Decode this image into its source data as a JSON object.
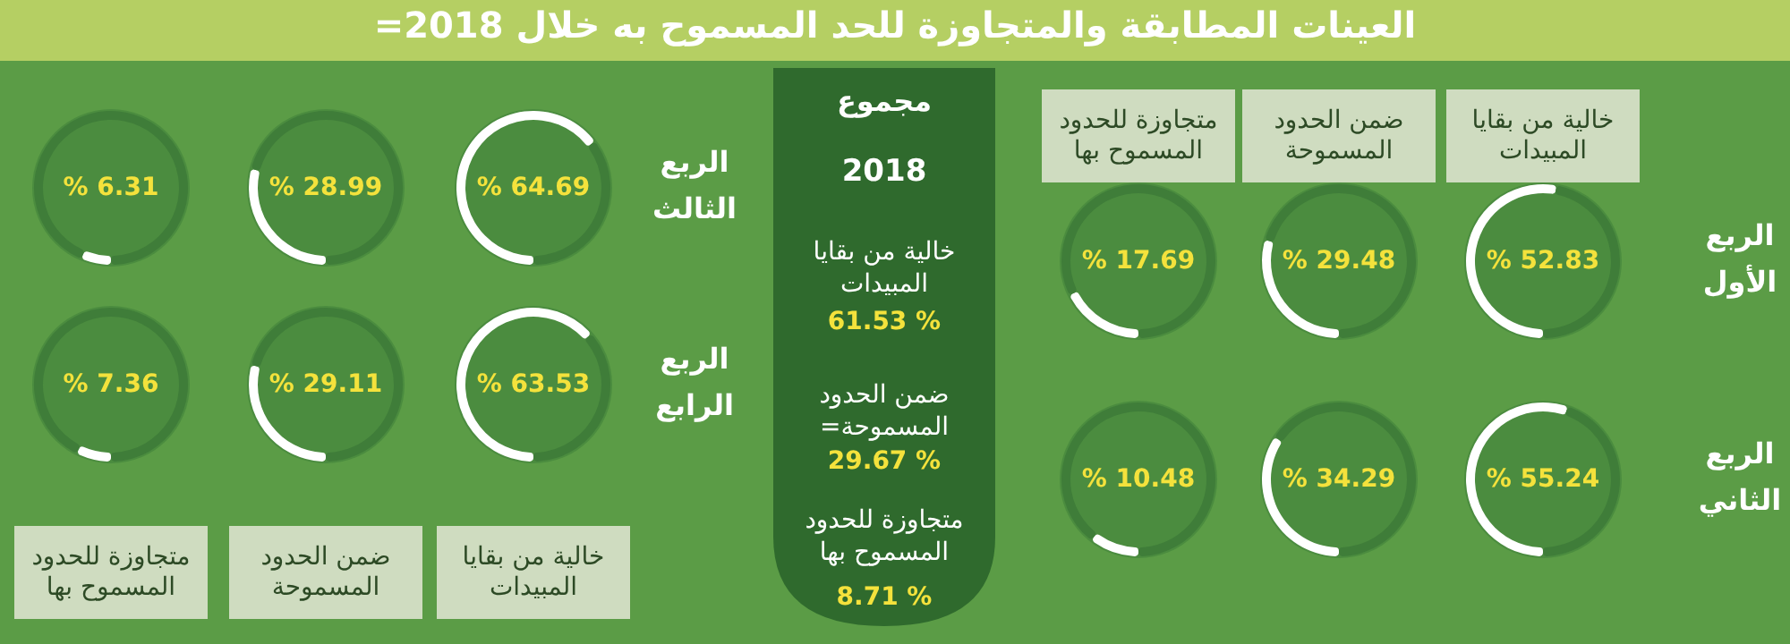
{
  "chart_data": [
    {
      "type": "other",
      "title": "العينات المطابقة والمتجاوزة للحد المسموح به خلال 2018=",
      "annotations": [
        "خالية من بقايا المبيدات",
        "ضمن الحدود المسموحة",
        "متجاوزة للحدود المسموح بها",
        "خالية من بقايا المبيدات",
        "ضمن الحدود المسموحة",
        "متجاوزة للحدود المسموح بها",
        "الربع الأول",
        "الربع الثاني",
        "الربع الثالث",
        "الربع الرابع"
      ]
    },
    {
      "type": "other",
      "title": "مجموع",
      "subtitle": "2018",
      "annotations": [
        "خالية من بقايا المبيدات",
        "% 61.53",
        "ضمن الحدود المسموحة=",
        "% 29.67",
        "متجاوزة للحدود المسموح بها",
        "% 8.71"
      ]
    },
    {
      "type": "donut",
      "categories": [
        null,
        null
      ],
      "values": [
        52.83,
        47.17
      ],
      "colors": [
        "#ffffff",
        "#3f7d39"
      ],
      "annotations": [
        "% 52.83"
      ]
    },
    {
      "type": "donut",
      "categories": [
        null,
        null
      ],
      "values": [
        29.48,
        70.52
      ],
      "colors": [
        "#ffffff",
        "#3f7d39"
      ],
      "annotations": [
        "% 29.48"
      ]
    },
    {
      "type": "donut",
      "categories": [
        null,
        null
      ],
      "values": [
        17.69,
        82.31
      ],
      "colors": [
        "#ffffff",
        "#3f7d39"
      ],
      "annotations": [
        "% 17.69"
      ]
    },
    {
      "type": "donut",
      "categories": [
        null,
        null
      ],
      "values": [
        55.24,
        44.76
      ],
      "colors": [
        "#ffffff",
        "#3f7d39"
      ],
      "annotations": [
        "% 55.24"
      ]
    },
    {
      "type": "donut",
      "categories": [
        null,
        null
      ],
      "values": [
        34.29,
        65.71
      ],
      "colors": [
        "#ffffff",
        "#3f7d39"
      ],
      "annotations": [
        "% 34.29"
      ]
    },
    {
      "type": "donut",
      "categories": [
        null,
        null
      ],
      "values": [
        10.48,
        89.52
      ],
      "colors": [
        "#ffffff",
        "#3f7d39"
      ],
      "annotations": [
        "% 10.48"
      ]
    },
    {
      "type": "donut",
      "categories": [
        null,
        null
      ],
      "values": [
        64.69,
        35.31
      ],
      "colors": [
        "#ffffff",
        "#3f7d39"
      ],
      "annotations": [
        "% 64.69"
      ]
    },
    {
      "type": "donut",
      "categories": [
        null,
        null
      ],
      "values": [
        28.99,
        71.01
      ],
      "colors": [
        "#ffffff",
        "#3f7d39"
      ],
      "annotations": [
        "% 28.99"
      ]
    },
    {
      "type": "donut",
      "categories": [
        null,
        null
      ],
      "values": [
        6.31,
        93.69
      ],
      "colors": [
        "#ffffff",
        "#3f7d39"
      ],
      "annotations": [
        "% 6.31"
      ]
    },
    {
      "type": "donut",
      "categories": [
        null,
        null
      ],
      "values": [
        63.53,
        36.47
      ],
      "colors": [
        "#ffffff",
        "#3f7d39"
      ],
      "annotations": [
        "% 63.53"
      ]
    },
    {
      "type": "donut",
      "categories": [
        null,
        null
      ],
      "values": [
        29.11,
        70.89
      ],
      "colors": [
        "#ffffff",
        "#3f7d39"
      ],
      "annotations": [
        "% 29.11"
      ]
    },
    {
      "type": "donut",
      "categories": [
        null,
        null
      ],
      "values": [
        7.36,
        92.64
      ],
      "colors": [
        "#ffffff",
        "#3f7d39"
      ],
      "annotations": [
        "% 7.36"
      ]
    }
  ]
}
